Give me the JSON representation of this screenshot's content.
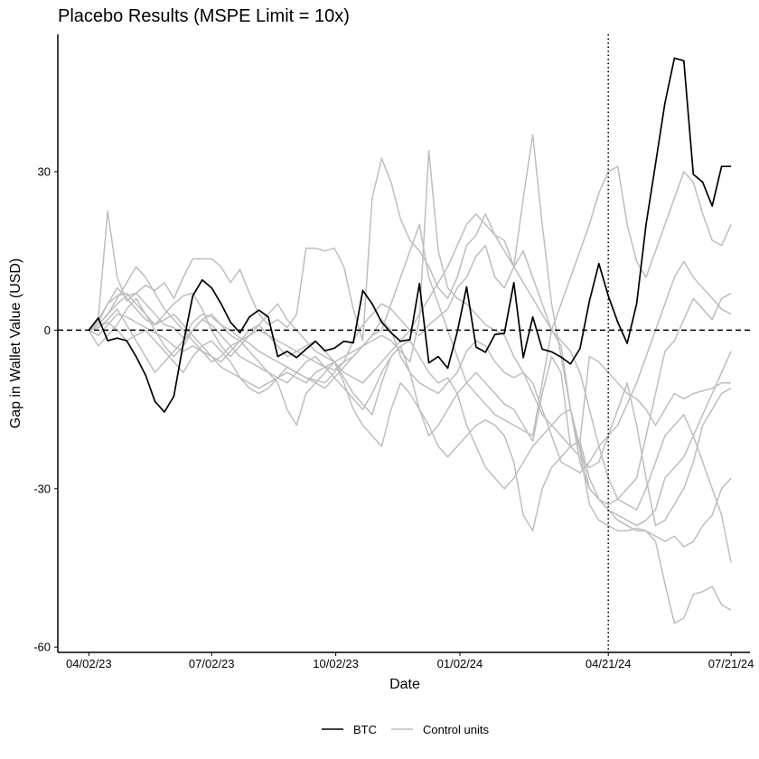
{
  "chart_data": {
    "type": "line",
    "title": "Placebo Results (MSPE Limit = 10x)",
    "xlabel": "Date",
    "ylabel": "Gap in Wallet Value (USD)",
    "x_ticks": [
      "04/02/23",
      "07/02/23",
      "10/02/23",
      "01/02/24",
      "04/21/24",
      "07/21/24"
    ],
    "x_tick_days": [
      0,
      91,
      183,
      275,
      385,
      476
    ],
    "y_ticks": [
      30,
      0,
      -30,
      -60
    ],
    "xlim_days": [
      -23,
      490
    ],
    "ylim": [
      -61,
      56
    ],
    "zero_line": 0,
    "treatment_date": "04/21/24",
    "treatment_day": 385,
    "grid": false,
    "legend_position": "bottom",
    "legend": [
      {
        "name": "BTC",
        "color": "#000000"
      },
      {
        "name": "Control units",
        "color": "#bebebe"
      }
    ],
    "x_days": [
      0,
      7,
      14,
      21,
      28,
      35,
      42,
      49,
      56,
      63,
      70,
      77,
      84,
      91,
      98,
      105,
      112,
      119,
      126,
      133,
      140,
      147,
      154,
      161,
      168,
      175,
      182,
      189,
      196,
      203,
      210,
      217,
      224,
      231,
      238,
      245,
      252,
      259,
      266,
      273,
      280,
      287,
      294,
      301,
      308,
      315,
      322,
      329,
      336,
      343,
      350,
      357,
      364,
      371,
      378,
      385,
      392,
      399,
      406,
      413,
      420,
      427,
      434,
      441,
      448,
      455,
      462,
      469,
      476
    ],
    "series": [
      {
        "name": "BTC",
        "color": "#000000",
        "values": [
          0,
          2.3,
          -2.0,
          -1.5,
          -2.0,
          -5.0,
          -8.5,
          -13.5,
          -15.5,
          -12.5,
          -2.5,
          6.5,
          9.5,
          8.0,
          5.0,
          1.5,
          -0.5,
          2.5,
          3.8,
          2.5,
          -5.0,
          -4.0,
          -5.2,
          -3.6,
          -2.1,
          -3.9,
          -3.4,
          -2.1,
          -2.4,
          7.5,
          5.0,
          1.5,
          -0.5,
          -2.1,
          -1.8,
          8.8,
          -6.2,
          -5.0,
          -7.2,
          -0.4,
          8.2,
          -3.2,
          -4.2,
          -0.8,
          -0.6,
          9.0,
          -5.2,
          2.5,
          -3.6,
          -4.1,
          -5.1,
          -6.4,
          -3.5,
          5.5,
          12.6,
          6.5,
          1.5,
          -2.5,
          5.0,
          20.0,
          31.5,
          43.0,
          51.5,
          51.0,
          29.5,
          28.0,
          23.5,
          31.0,
          31.0
        ]
      },
      {
        "name": "",
        "color": "#bebebe",
        "values": [
          0,
          2.3,
          22.5,
          10.0,
          5.5,
          7.0,
          8.5,
          7.5,
          9.0,
          6.0,
          10.0,
          13.5,
          13.5,
          13.5,
          12.0,
          9.0,
          11.5,
          7.0,
          3.0,
          1.0,
          2.0,
          0.5,
          3.0,
          15.5,
          15.5,
          15.0,
          15.5,
          12.0,
          4.0,
          -2.0,
          25.0,
          32.5,
          28.0,
          21.0,
          17.0,
          15.0,
          12.0,
          8.0,
          6.0,
          10.0,
          16.0,
          18.0,
          22.0,
          18.0,
          17.0,
          12.0,
          15.0,
          10.0,
          5.0,
          0.0,
          -3.0,
          -15.0,
          -25.0,
          -30.0,
          -32.0,
          -34.0,
          -36.0,
          -37.0,
          -38.0,
          -38.0,
          -39.0,
          -40.0,
          -39.0,
          -41.0,
          -40.0,
          -37.0,
          -35.0,
          -30.0,
          -28.0
        ]
      },
      {
        "name": "",
        "color": "#bebebe",
        "values": [
          0,
          1.0,
          3.0,
          5.0,
          6.5,
          7.0,
          5.0,
          3.0,
          1.0,
          0.5,
          -1.5,
          1.5,
          3.0,
          2.5,
          1.0,
          0.0,
          -1.5,
          -2.5,
          -4.0,
          -5.0,
          -6.0,
          -7.0,
          -8.0,
          -9.0,
          -9.5,
          -10.0,
          -8.0,
          -6.0,
          -2.0,
          1.0,
          3.0,
          5.0,
          4.0,
          2.0,
          0.0,
          -1.0,
          1.0,
          2.5,
          4.0,
          8.0,
          10.0,
          14.0,
          16.0,
          10.0,
          8.0,
          12.0,
          25.0,
          37.0,
          20.0,
          5.0,
          -5.0,
          -15.0,
          -23.0,
          -33.0,
          -36.0,
          -37.0,
          -38.0,
          -38.0,
          -37.5,
          -38.0,
          -40.0,
          -48.0,
          -55.5,
          -54.5,
          -50.0,
          -49.5,
          -48.5,
          -52.0,
          -53.0
        ]
      },
      {
        "name": "",
        "color": "#bebebe",
        "values": [
          0,
          -3.0,
          -1.0,
          1.0,
          4.0,
          6.0,
          3.0,
          0.0,
          -3.0,
          -5.0,
          -3.0,
          0.0,
          2.0,
          1.0,
          -1.0,
          -3.0,
          -5.0,
          -6.0,
          -7.0,
          -8.0,
          -10.0,
          -15.0,
          -18.0,
          -12.0,
          -10.0,
          -8.0,
          -6.0,
          -10.0,
          -15.0,
          -18.0,
          -20.0,
          -22.0,
          -15.0,
          -10.0,
          -12.0,
          -15.0,
          -18.0,
          -22.0,
          -24.0,
          -22.0,
          -20.0,
          -18.0,
          -17.0,
          -18.0,
          -20.0,
          -25.0,
          -35.0,
          -38.0,
          -30.0,
          -26.0,
          -24.0,
          -22.0,
          -21.0,
          -28.0,
          -32.0,
          -33.0,
          -32.0,
          -30.0,
          -28.0,
          -20.0,
          -12.0,
          -4.0,
          -2.0,
          2.0,
          6.0,
          4.0,
          2.0,
          6.0,
          7.0
        ]
      },
      {
        "name": "",
        "color": "#bebebe",
        "values": [
          0,
          0.5,
          1.5,
          0.0,
          -2.0,
          -1.0,
          0.0,
          -2.0,
          -4.0,
          -6.0,
          -8.0,
          -5.0,
          -3.0,
          -2.0,
          -4.0,
          -6.0,
          -9.0,
          -11.0,
          -12.0,
          -11.0,
          -9.0,
          -7.0,
          -8.0,
          -9.0,
          -10.0,
          -11.0,
          -9.0,
          -7.0,
          -5.0,
          -3.0,
          -1.0,
          2.0,
          0.0,
          -5.0,
          -8.0,
          -10.0,
          -11.0,
          -12.0,
          -10.0,
          -8.0,
          -4.0,
          -2.0,
          -3.0,
          -6.0,
          -8.0,
          -9.0,
          -8.0,
          -12.0,
          -16.0,
          -18.0,
          -20.0,
          -22.0,
          -24.0,
          -26.0,
          -25.0,
          -20.0,
          -15.0,
          -10.0,
          -18.0,
          -28.0,
          -37.0,
          -36.0,
          -33.0,
          -30.0,
          -25.0,
          -18.0,
          -15.0,
          -12.0,
          -11.0
        ]
      },
      {
        "name": "",
        "color": "#bebebe",
        "values": [
          0,
          1.5,
          5.0,
          6.5,
          7.0,
          5.0,
          3.0,
          1.0,
          2.0,
          3.0,
          1.0,
          -1.0,
          -3.0,
          -5.0,
          -7.0,
          -8.0,
          -9.0,
          -10.0,
          -11.0,
          -10.0,
          -9.0,
          -8.0,
          -9.0,
          -10.0,
          -8.0,
          -7.0,
          -6.0,
          -9.0,
          -12.0,
          -14.0,
          -16.0,
          -10.0,
          -5.0,
          -3.0,
          -8.0,
          -15.0,
          -20.0,
          -18.0,
          -15.0,
          -12.0,
          -10.0,
          -8.0,
          -10.0,
          -12.0,
          -14.0,
          -15.0,
          -18.0,
          -21.0,
          -12.0,
          -5.0,
          -8.0,
          -22.0,
          -21.0,
          -5.0,
          -6.0,
          -8.0,
          -10.0,
          -12.0,
          -13.0,
          -15.0,
          -18.0,
          -15.0,
          -12.0,
          -13.0,
          -12.0,
          -11.5,
          -11.0,
          -10.0,
          -10.0
        ]
      },
      {
        "name": "",
        "color": "#bebebe",
        "values": [
          0,
          -1.0,
          1.0,
          3.0,
          2.5,
          1.5,
          0.5,
          -0.5,
          -1.5,
          -3.0,
          -4.0,
          -3.0,
          -4.0,
          -5.0,
          -6.0,
          -4.0,
          -2.0,
          0.0,
          1.0,
          -1.0,
          -2.0,
          -3.0,
          -4.0,
          -5.0,
          -6.0,
          -7.0,
          -7.5,
          -6.0,
          -5.0,
          -3.0,
          -1.0,
          0.0,
          5.0,
          10.0,
          15.0,
          20.0,
          10.0,
          5.0,
          0.0,
          -5.0,
          -10.0,
          -12.0,
          -14.0,
          -16.0,
          -17.0,
          -18.0,
          -19.0,
          -20.0,
          -10.0,
          0.0,
          5.0,
          10.0,
          15.0,
          20.0,
          26.0,
          30.0,
          31.0,
          20.0,
          13.0,
          10.0,
          15.0,
          20.0,
          25.0,
          30.0,
          28.0,
          22.0,
          17.0,
          16.0,
          20.0
        ]
      },
      {
        "name": "",
        "color": "#bebebe",
        "values": [
          0,
          2.0,
          5.0,
          8.0,
          6.0,
          4.0,
          2.0,
          1.0,
          3.0,
          5.0,
          6.5,
          7.0,
          4.0,
          0.0,
          -3.0,
          -5.0,
          -3.0,
          -1.0,
          1.0,
          3.0,
          5.0,
          2.0,
          0.0,
          -2.0,
          -4.0,
          -5.0,
          -6.0,
          -5.0,
          -4.0,
          -3.0,
          -2.0,
          -1.0,
          -2.0,
          -4.0,
          -6.0,
          2.0,
          34.0,
          15.0,
          8.0,
          6.0,
          5.0,
          3.0,
          1.0,
          0.0,
          -1.0,
          -5.0,
          -8.0,
          -10.0,
          -15.0,
          -20.0,
          -25.0,
          -26.0,
          -27.0,
          -25.0,
          -22.0,
          -20.0,
          -18.0,
          -14.0,
          -10.0,
          -5.0,
          0.0,
          5.0,
          10.0,
          13.0,
          10.0,
          8.0,
          6.0,
          4.0,
          3.0
        ]
      },
      {
        "name": "",
        "color": "#bebebe",
        "values": [
          0,
          0.5,
          2.0,
          4.0,
          1.0,
          -2.0,
          -5.0,
          -8.0,
          -6.0,
          -4.0,
          -2.0,
          0.0,
          2.0,
          3.0,
          1.0,
          -1.0,
          -2.0,
          -4.0,
          -6.0,
          -8.0,
          -9.0,
          -10.0,
          -8.0,
          -6.0,
          -5.0,
          -7.0,
          -9.0,
          -11.0,
          -13.0,
          -15.0,
          -12.0,
          -8.0,
          -5.0,
          -3.0,
          -2.0,
          -5.0,
          -8.0,
          -10.0,
          -9.0,
          -12.0,
          -18.0,
          -22.0,
          -26.0,
          -28.0,
          -30.0,
          -28.0,
          -25.0,
          -22.0,
          -20.0,
          -18.0,
          -16.0,
          -15.0,
          -22.0,
          -30.0,
          -32.0,
          -34.0,
          -35.0,
          -36.0,
          -37.0,
          -36.0,
          -34.0,
          -28.0,
          -26.0,
          -24.0,
          -20.0,
          -16.0,
          -12.0,
          -8.0,
          -4.0
        ]
      },
      {
        "name": "",
        "color": "#bebebe",
        "values": [
          0,
          1.0,
          3.0,
          6.0,
          9.0,
          12.0,
          10.0,
          7.0,
          4.0,
          2.0,
          0.0,
          -2.0,
          -4.0,
          -6.0,
          -5.0,
          -3.0,
          -2.0,
          -1.0,
          0.0,
          -1.0,
          -3.0,
          -5.0,
          -4.0,
          -3.0,
          -2.0,
          -4.0,
          -6.0,
          -8.0,
          -9.0,
          -10.0,
          -8.0,
          -6.0,
          -4.0,
          -2.0,
          0.0,
          3.0,
          6.0,
          9.0,
          12.0,
          16.0,
          20.0,
          22.0,
          20.0,
          18.0,
          15.0,
          12.0,
          9.0,
          6.0,
          3.0,
          0.0,
          -2.0,
          -4.0,
          -8.0,
          -15.0,
          -22.0,
          -28.0,
          -32.0,
          -33.0,
          -34.0,
          -30.0,
          -25.0,
          -20.0,
          -18.0,
          -16.0,
          -20.0,
          -25.0,
          -30.0,
          -35.0,
          -44.0
        ]
      }
    ]
  }
}
